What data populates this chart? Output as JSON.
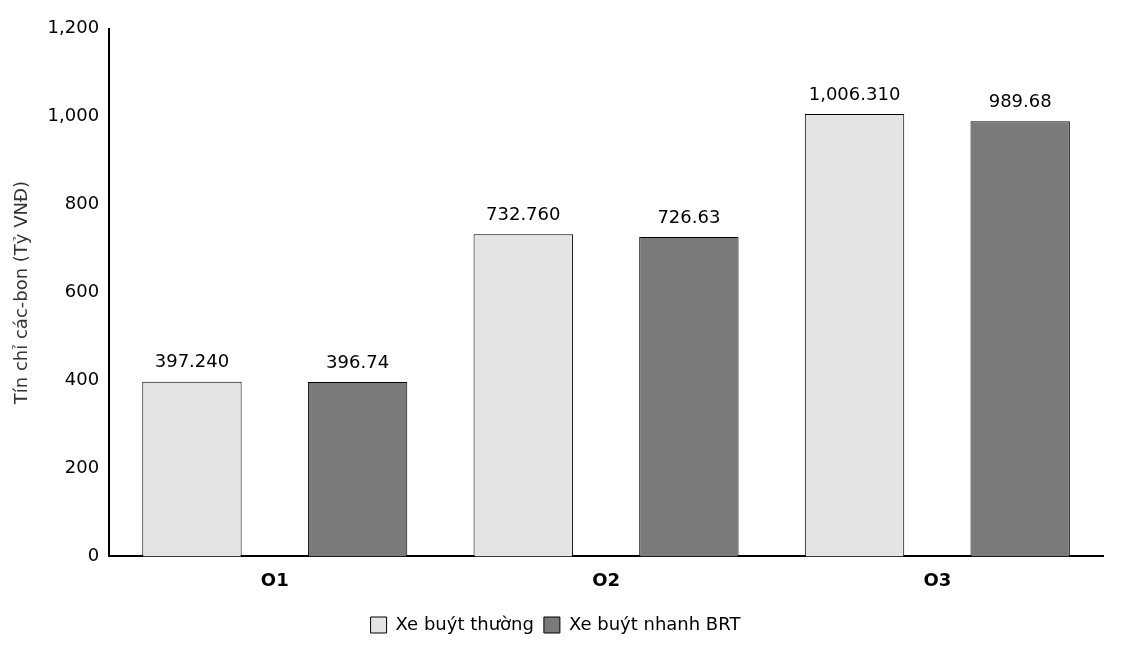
{
  "chart_data": {
    "type": "bar",
    "ylabel": "Tín chỉ các-bon (Tỷ VNĐ)",
    "categories": [
      "O1",
      "O2",
      "O3"
    ],
    "series": [
      {
        "name": "Xe buýt thường",
        "color": "#e4e4e4",
        "values": [
          397.24,
          732.76,
          1006.31
        ],
        "value_labels": [
          "397.240",
          "732.760",
          "1,006.310"
        ]
      },
      {
        "name": "Xe buýt nhanh BRT",
        "color": "#7a7a7a",
        "values": [
          396.74,
          726.63,
          989.68
        ],
        "value_labels": [
          "396.74",
          "726.63",
          "989.68"
        ]
      }
    ],
    "ylim": [
      0,
      1200
    ],
    "yticks": [
      0,
      200,
      400,
      600,
      800,
      {
        "value": 1000,
        "label": "1,000"
      },
      {
        "value": 1200,
        "label": "1,200"
      }
    ],
    "grid": false,
    "legend": "bottom"
  }
}
